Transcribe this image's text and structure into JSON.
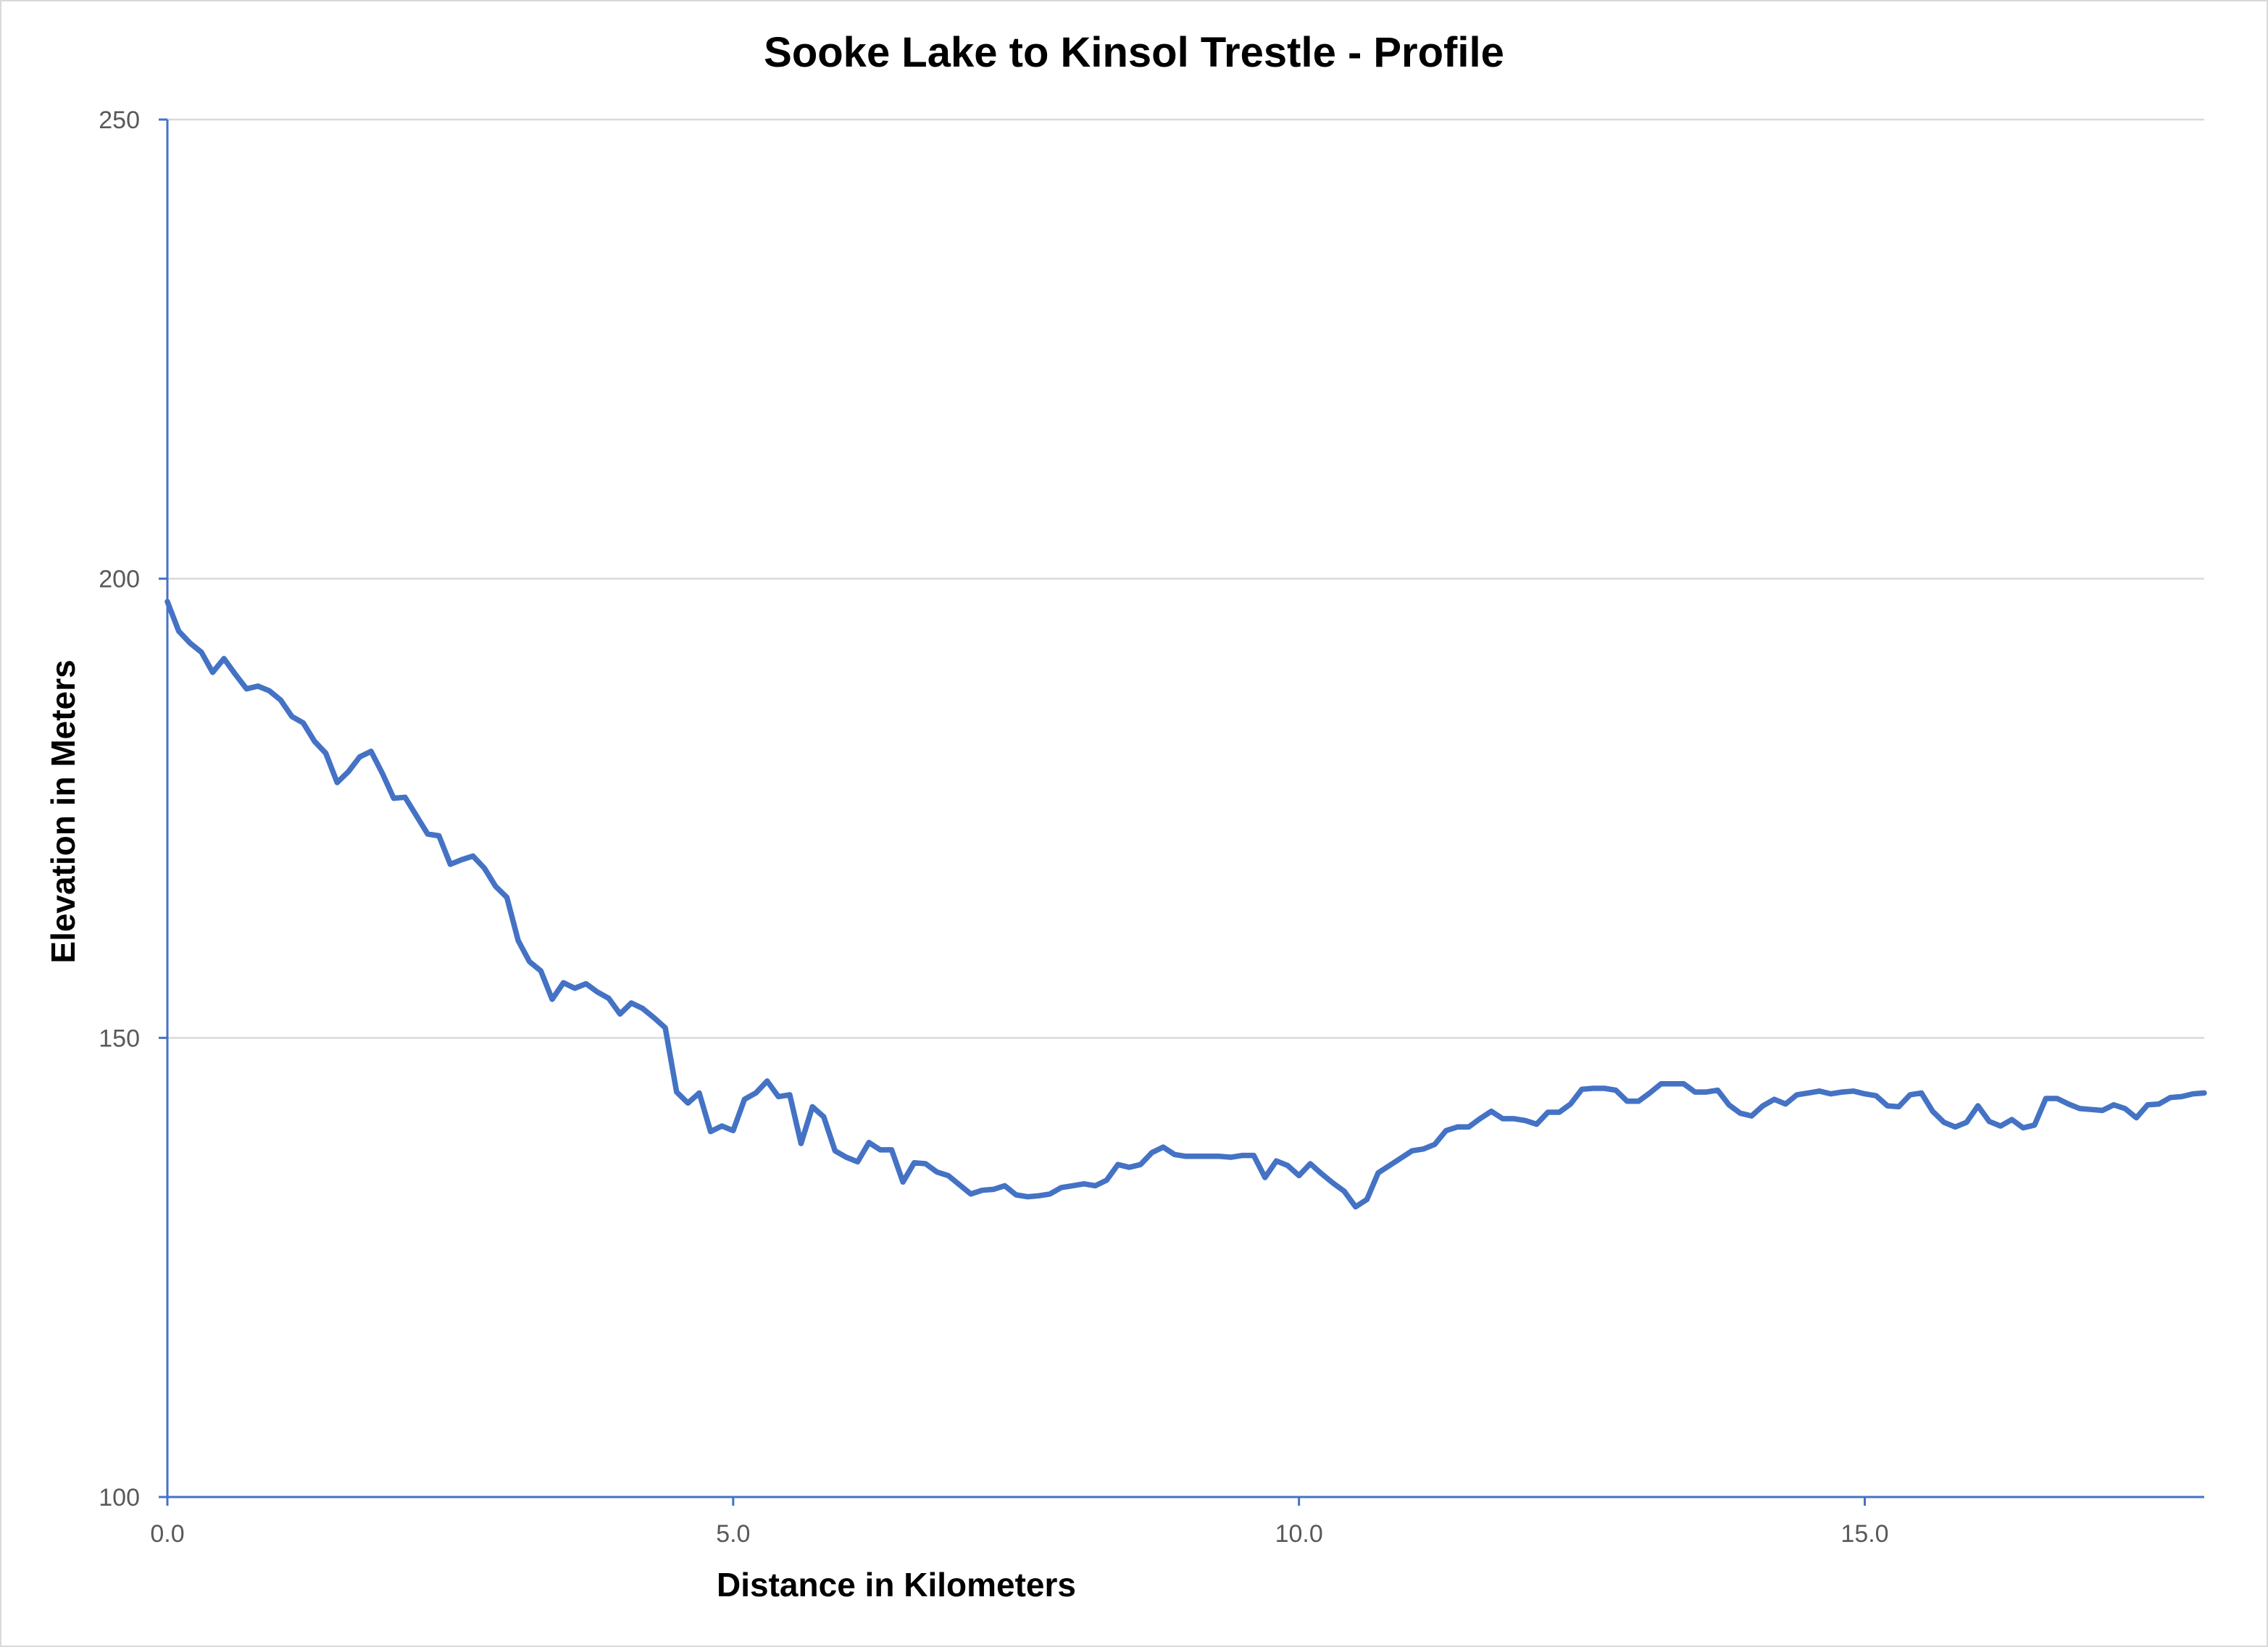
{
  "chart_data": {
    "type": "line",
    "title": "Sooke Lake to Kinsol Trestle - Profile",
    "xlabel": "Distance in Kilometers",
    "ylabel": "Elevation in Meters",
    "xlim": [
      0,
      18
    ],
    "ylim": [
      100,
      250
    ],
    "xticks": [
      0,
      5,
      10,
      15
    ],
    "xtick_labels": [
      "0.0",
      "5.0",
      "10.0",
      "15.0"
    ],
    "yticks": [
      100,
      150,
      200,
      250
    ],
    "ytick_labels": [
      "100",
      "150",
      "200",
      "250"
    ],
    "grid": "horizontal",
    "legend": "none",
    "series_color": "#4472c4",
    "series": [
      {
        "x": [
          0.0,
          0.1,
          0.2,
          0.3,
          0.4,
          0.5,
          0.6,
          0.7,
          0.8,
          0.9,
          1.0,
          1.1,
          1.2,
          1.3,
          1.4,
          1.5,
          1.6,
          1.7,
          1.8,
          1.9,
          2.0,
          2.1,
          2.2,
          2.3,
          2.4,
          2.5,
          2.6,
          2.7,
          2.8,
          2.9,
          3.0,
          3.1,
          3.2,
          3.3,
          3.4,
          3.5,
          3.6,
          3.7,
          3.8,
          3.9,
          4.0,
          4.1,
          4.2,
          4.3,
          4.4,
          4.5,
          4.6,
          4.7,
          4.8,
          4.9,
          5.0,
          5.1,
          5.2,
          5.3,
          5.4,
          5.5,
          5.6,
          5.7,
          5.8,
          5.9,
          6.0,
          6.1,
          6.2,
          6.3,
          6.4,
          6.5,
          6.6,
          6.7,
          6.8,
          6.9,
          7.0,
          7.1,
          7.2,
          7.3,
          7.4,
          7.5,
          7.6,
          7.7,
          7.8,
          7.9,
          8.0,
          8.1,
          8.2,
          8.3,
          8.4,
          8.5,
          8.6,
          8.7,
          8.8,
          8.9,
          9.0,
          9.1,
          9.2,
          9.3,
          9.4,
          9.5,
          9.6,
          9.7,
          9.8,
          9.9,
          10.0,
          10.1,
          10.2,
          10.3,
          10.4,
          10.5,
          10.6,
          10.7,
          10.8,
          10.9,
          11.0,
          11.1,
          11.2,
          11.3,
          11.4,
          11.5,
          11.6,
          11.7,
          11.8,
          11.9,
          12.0,
          12.1,
          12.2,
          12.3,
          12.4,
          12.5,
          12.6,
          12.7,
          12.8,
          12.9,
          13.0,
          13.1,
          13.2,
          13.3,
          13.4,
          13.5,
          13.6,
          13.7,
          13.8,
          13.9,
          14.0,
          14.1,
          14.2,
          14.3,
          14.4,
          14.5,
          14.6,
          14.7,
          14.8,
          14.9,
          15.0,
          15.1,
          15.2,
          15.3,
          15.4,
          15.5,
          15.6,
          15.7,
          15.8,
          15.9,
          16.0,
          16.1,
          16.2,
          16.3,
          16.4,
          16.5,
          16.6,
          16.7,
          16.8,
          16.9,
          17.0,
          17.1,
          17.2,
          17.3,
          17.4,
          17.5,
          17.6,
          17.7,
          17.8,
          17.9,
          18.0
        ],
        "values": [
          197.5,
          194.3,
          193.0,
          192.0,
          189.8,
          191.3,
          189.6,
          188.0,
          188.3,
          187.8,
          186.8,
          185.0,
          184.3,
          182.3,
          181.0,
          177.8,
          179.0,
          180.6,
          181.2,
          178.8,
          176.1,
          176.2,
          174.2,
          172.2,
          172.0,
          168.9,
          169.4,
          169.8,
          168.5,
          166.5,
          165.3,
          160.6,
          158.3,
          157.3,
          154.2,
          156.0,
          155.4,
          155.9,
          155.0,
          154.3,
          152.6,
          153.8,
          153.2,
          152.2,
          151.1,
          144.1,
          142.9,
          144.0,
          139.8,
          140.4,
          139.9,
          143.3,
          144.0,
          145.3,
          143.6,
          143.8,
          138.5,
          142.5,
          141.4,
          137.7,
          137.0,
          136.5,
          138.6,
          137.8,
          137.8,
          134.3,
          136.4,
          136.3,
          135.4,
          135.0,
          134.0,
          133.0,
          133.4,
          133.5,
          133.9,
          132.9,
          132.7,
          132.8,
          133.0,
          133.7,
          133.9,
          134.1,
          133.9,
          134.5,
          136.2,
          135.9,
          136.2,
          137.5,
          138.1,
          137.3,
          137.1,
          137.1,
          137.1,
          137.1,
          137.0,
          137.2,
          137.2,
          134.8,
          136.6,
          136.1,
          135.0,
          136.3,
          135.2,
          134.2,
          133.3,
          131.6,
          132.4,
          135.3,
          136.1,
          136.9,
          137.7,
          137.9,
          138.4,
          139.9,
          140.3,
          140.3,
          141.2,
          142.0,
          141.2,
          141.2,
          141.0,
          140.6,
          141.9,
          141.9,
          142.8,
          144.4,
          144.5,
          144.5,
          144.3,
          143.1,
          143.1,
          144.0,
          145.0,
          145.0,
          145.0,
          144.1,
          144.1,
          144.3,
          142.7,
          141.8,
          141.5,
          142.6,
          143.3,
          142.8,
          143.8,
          144.0,
          144.2,
          143.9,
          144.1,
          144.2,
          143.9,
          143.7,
          142.6,
          142.5,
          143.8,
          144.0,
          142.0,
          140.8,
          140.3,
          140.8,
          142.6,
          140.9,
          140.4,
          141.1,
          140.2,
          140.5,
          143.4,
          143.4,
          142.8,
          142.3,
          142.2,
          142.1,
          142.7,
          142.3,
          141.3,
          142.7,
          142.8,
          143.5,
          143.6,
          143.9,
          144.0
        ]
      }
    ]
  }
}
